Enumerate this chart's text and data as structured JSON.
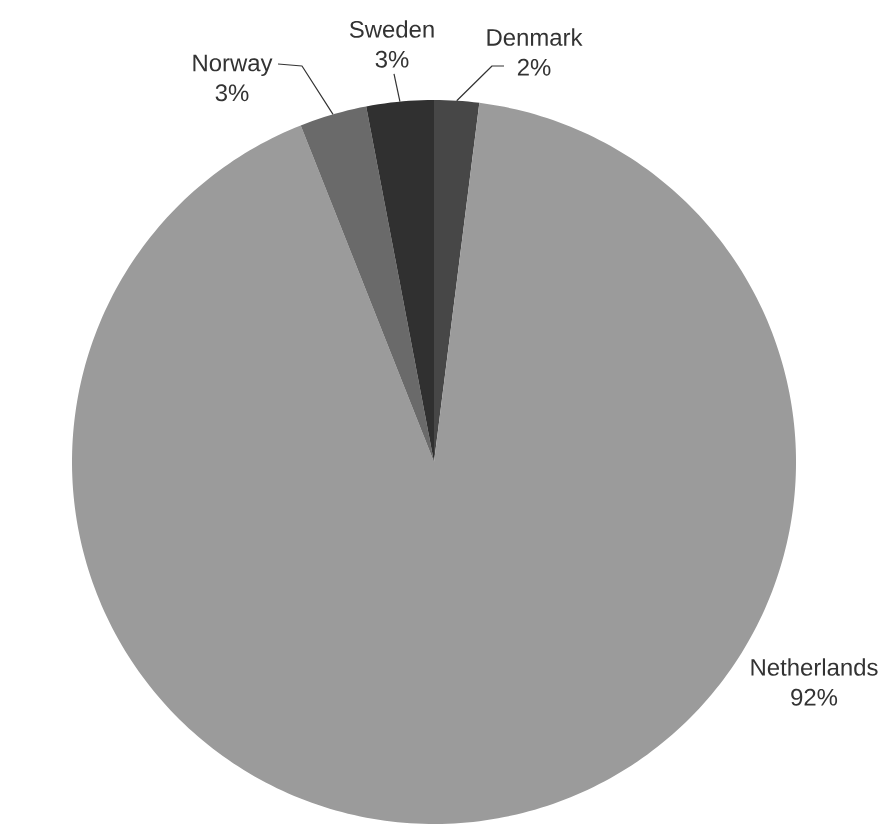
{
  "chart_data": {
    "type": "pie",
    "categories": [
      "Denmark",
      "Netherlands",
      "Norway",
      "Sweden"
    ],
    "values": [
      2,
      92,
      3,
      3
    ],
    "colors": [
      "#474747",
      "#9b9b9b",
      "#6a6a6a",
      "#303030"
    ],
    "value_labels": [
      "2%",
      "92%",
      "3%",
      "3%"
    ]
  }
}
